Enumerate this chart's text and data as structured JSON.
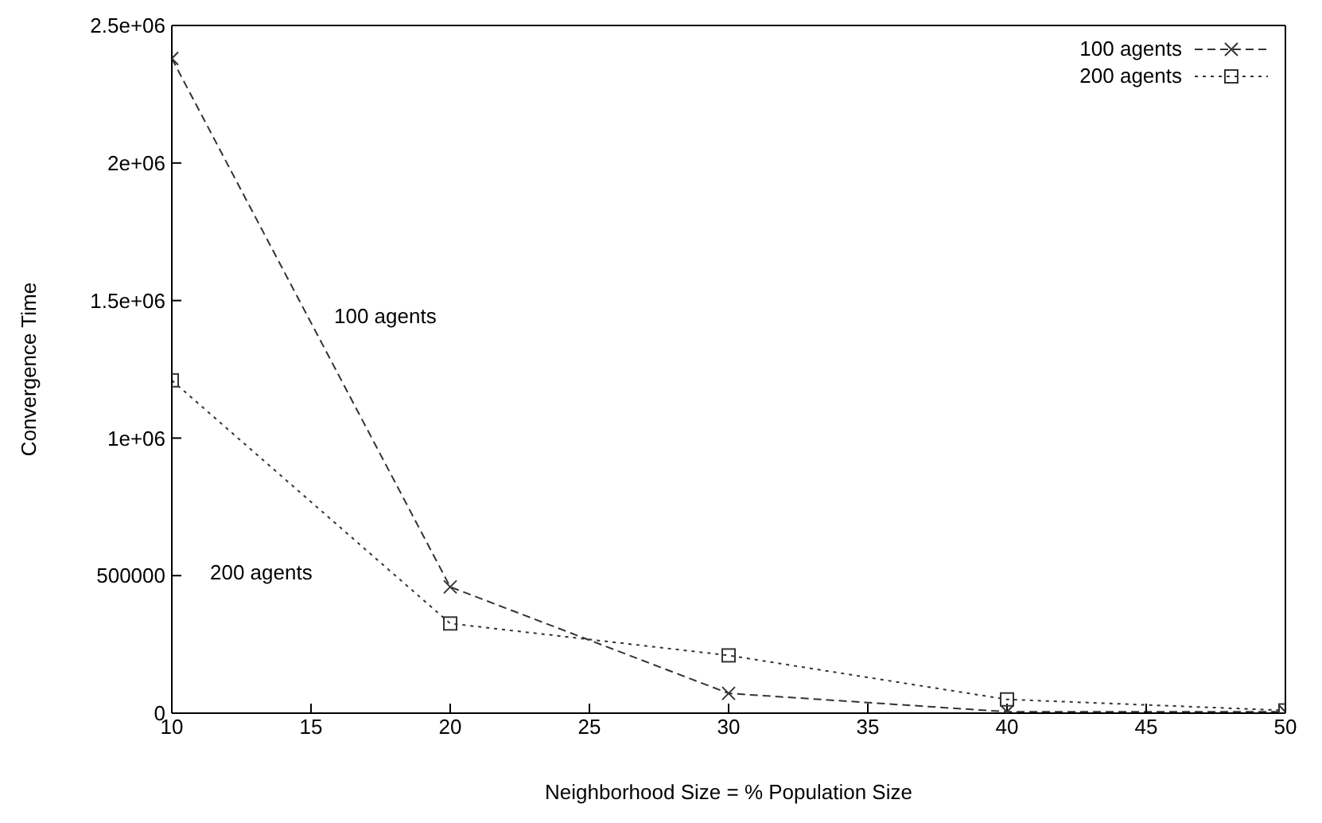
{
  "chart_data": {
    "type": "line",
    "xlabel": "Neighborhood Size = % Population Size",
    "ylabel": "Convergence Time",
    "x": [
      10,
      20,
      30,
      40,
      50
    ],
    "series": [
      {
        "name": "100 agents",
        "color": "#333333",
        "values": [
          2380000,
          459000,
          72000,
          5000,
          5000
        ],
        "marker": "cross",
        "line_style": "dashed"
      },
      {
        "name": "200 agents",
        "color": "#333333",
        "values": [
          1210000,
          326000,
          210000,
          50000,
          10000
        ],
        "marker": "square",
        "line_style": "dotted"
      }
    ],
    "xlim": [
      10,
      50
    ],
    "xticks": [
      10,
      15,
      20,
      25,
      30,
      35,
      40,
      45,
      50
    ],
    "ylim": [
      0,
      2500000
    ],
    "yticks": [
      0,
      500000,
      {
        "value": 1000000,
        "label": "1e+06"
      },
      {
        "value": 1500000,
        "label": "1.5e+06"
      },
      {
        "value": 2000000,
        "label": "2e+06"
      },
      {
        "value": 2500000,
        "label": "2.5e+06"
      }
    ],
    "annotations": [
      "100 agents",
      "200 agents"
    ],
    "legend": "top right",
    "grid": false
  }
}
